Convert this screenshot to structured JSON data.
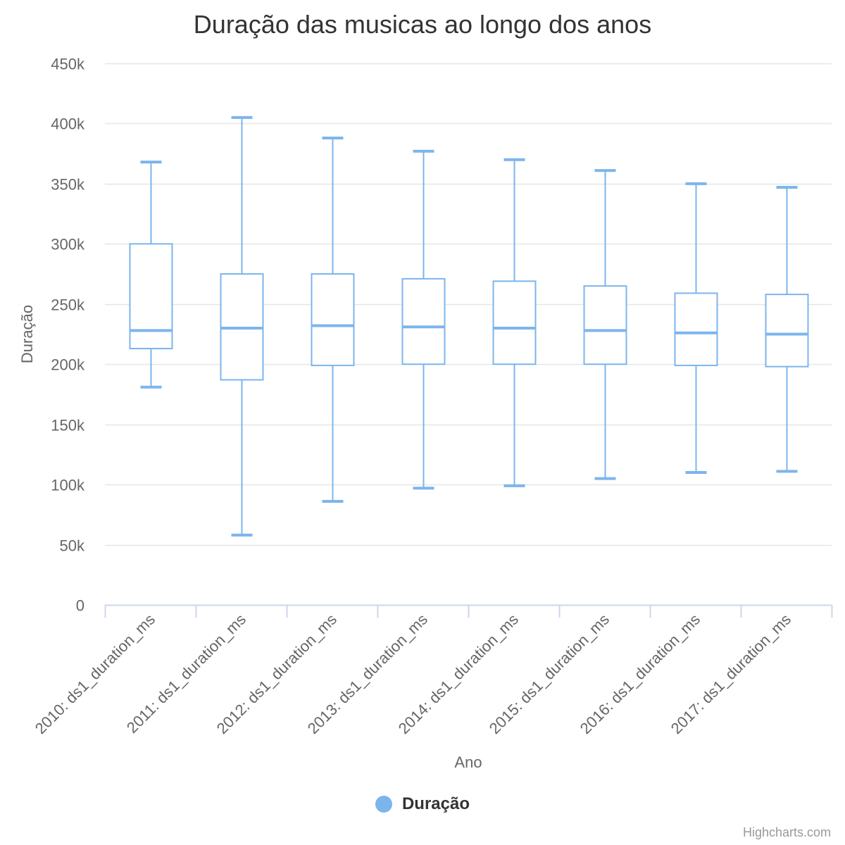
{
  "chart_data": {
    "type": "boxplot",
    "title": "Duração das musicas ao longo dos anos",
    "xlabel": "Ano",
    "ylabel": "Duração",
    "ylim": [
      0,
      450000
    ],
    "y_ticks": [
      0,
      50000,
      100000,
      150000,
      200000,
      250000,
      300000,
      350000,
      400000,
      450000
    ],
    "y_tick_labels": [
      "0",
      "50k",
      "100k",
      "150k",
      "200k",
      "250k",
      "300k",
      "350k",
      "400k",
      "450k"
    ],
    "grid": true,
    "legend_position": "bottom-center",
    "categories": [
      "2010: ds1_duration_ms",
      "2011: ds1_duration_ms",
      "2012: ds1_duration_ms",
      "2013: ds1_duration_ms",
      "2014: ds1_duration_ms",
      "2015: ds1_duration_ms",
      "2016: ds1_duration_ms",
      "2017: ds1_duration_ms"
    ],
    "series": [
      {
        "name": "Duração",
        "color": "#7cb5ec",
        "boxes": [
          {
            "low": 181000,
            "q1": 213000,
            "median": 228000,
            "q3": 300000,
            "high": 368000
          },
          {
            "low": 58000,
            "q1": 187000,
            "median": 230000,
            "q3": 275000,
            "high": 405000
          },
          {
            "low": 86000,
            "q1": 199000,
            "median": 232000,
            "q3": 275000,
            "high": 388000
          },
          {
            "low": 97000,
            "q1": 200000,
            "median": 231000,
            "q3": 271000,
            "high": 377000
          },
          {
            "low": 99000,
            "q1": 200000,
            "median": 230000,
            "q3": 269000,
            "high": 370000
          },
          {
            "low": 105000,
            "q1": 200000,
            "median": 228000,
            "q3": 265000,
            "high": 361000
          },
          {
            "low": 110000,
            "q1": 199000,
            "median": 226000,
            "q3": 259000,
            "high": 350000
          },
          {
            "low": 111000,
            "q1": 198000,
            "median": 225000,
            "q3": 258000,
            "high": 347000
          }
        ]
      }
    ]
  },
  "credits": "Highcharts.com"
}
